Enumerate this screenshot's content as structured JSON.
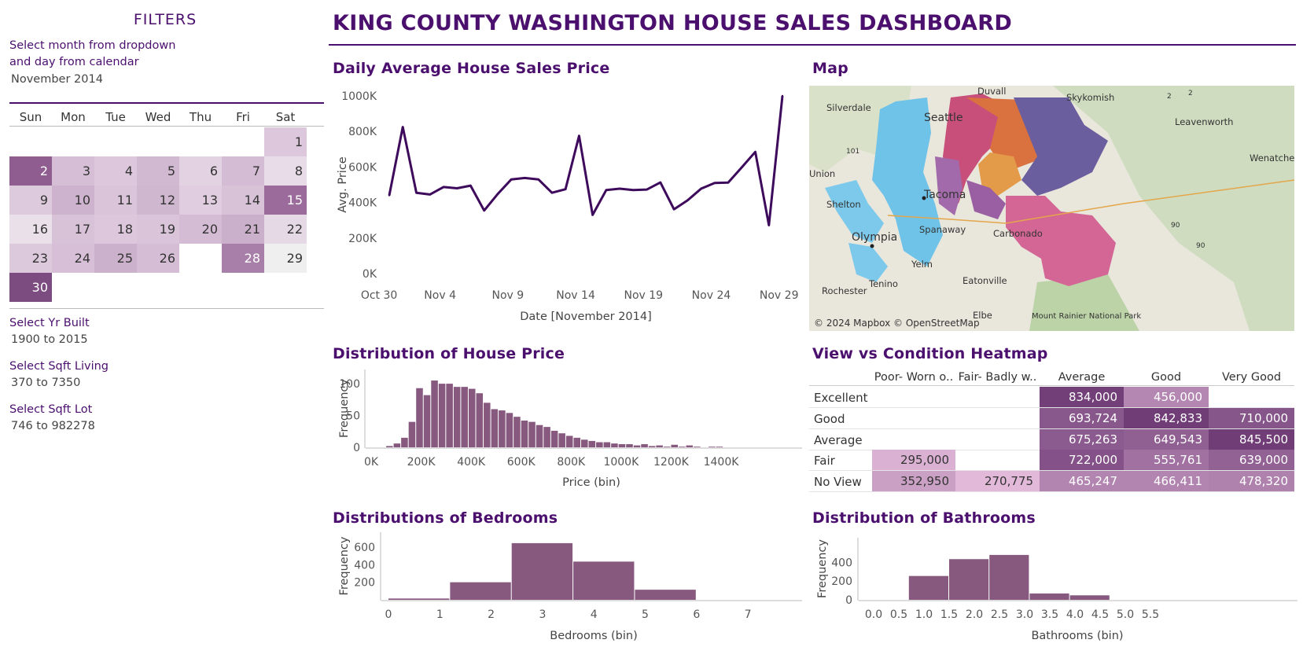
{
  "filters": {
    "title": "FILTERS",
    "month_label_line1": "Select month from dropdown",
    "month_label_line2": "and day from calendar",
    "month_value": "November 2014",
    "calendar": {
      "weekdays": [
        "Sun",
        "Mon",
        "Tue",
        "Wed",
        "Thu",
        "Fri",
        "Sat"
      ],
      "days": [
        {
          "d": "1",
          "week": 0,
          "dow": 6,
          "shade": "#dcc7dc"
        },
        {
          "d": "2",
          "week": 1,
          "dow": 0,
          "shade": "#8f5d90",
          "light": true
        },
        {
          "d": "3",
          "week": 1,
          "dow": 1,
          "shade": "#d6bfd6"
        },
        {
          "d": "4",
          "week": 1,
          "dow": 2,
          "shade": "#dcc7dc"
        },
        {
          "d": "5",
          "week": 1,
          "dow": 3,
          "shade": "#d2b9d2"
        },
        {
          "d": "6",
          "week": 1,
          "dow": 4,
          "shade": "#e2d2e2"
        },
        {
          "d": "7",
          "week": 1,
          "dow": 5,
          "shade": "#d4bcd4"
        },
        {
          "d": "8",
          "week": 1,
          "dow": 6,
          "shade": "#e8dce8"
        },
        {
          "d": "9",
          "week": 2,
          "dow": 0,
          "shade": "#ddcadd"
        },
        {
          "d": "10",
          "week": 2,
          "dow": 1,
          "shade": "#cdb3cd"
        },
        {
          "d": "11",
          "week": 2,
          "dow": 2,
          "shade": "#d9c4d9"
        },
        {
          "d": "12",
          "week": 2,
          "dow": 3,
          "shade": "#d0b7d0"
        },
        {
          "d": "13",
          "week": 2,
          "dow": 4,
          "shade": "#e0cee0"
        },
        {
          "d": "14",
          "week": 2,
          "dow": 5,
          "shade": "#d8c2d8"
        },
        {
          "d": "15",
          "week": 2,
          "dow": 6,
          "shade": "#9a6b9b",
          "light": true
        },
        {
          "d": "16",
          "week": 3,
          "dow": 0,
          "shade": "#e9e0e9"
        },
        {
          "d": "17",
          "week": 3,
          "dow": 1,
          "shade": "#d8c2d8"
        },
        {
          "d": "18",
          "week": 3,
          "dow": 2,
          "shade": "#dcc7dc"
        },
        {
          "d": "19",
          "week": 3,
          "dow": 3,
          "shade": "#d9c4d9"
        },
        {
          "d": "20",
          "week": 3,
          "dow": 4,
          "shade": "#d4bcd4"
        },
        {
          "d": "21",
          "week": 3,
          "dow": 5,
          "shade": "#cbb0cb"
        },
        {
          "d": "22",
          "week": 3,
          "dow": 6,
          "shade": "#e6d9e6"
        },
        {
          "d": "23",
          "week": 4,
          "dow": 0,
          "shade": "#dccadc"
        },
        {
          "d": "24",
          "week": 4,
          "dow": 1,
          "shade": "#d7c0d7"
        },
        {
          "d": "25",
          "week": 4,
          "dow": 2,
          "shade": "#ccb1cc"
        },
        {
          "d": "26",
          "week": 4,
          "dow": 3,
          "shade": "#d5bed5"
        },
        {
          "d": "28",
          "week": 4,
          "dow": 5,
          "shade": "#a87fa9",
          "light": true
        },
        {
          "d": "29",
          "week": 4,
          "dow": 6,
          "shade": "#efefef"
        },
        {
          "d": "30",
          "week": 5,
          "dow": 0,
          "shade": "#7c4b7f",
          "light": true
        }
      ]
    },
    "yr_built_label": "Select Yr Built",
    "yr_built_value": "1900 to 2015",
    "sqft_living_label": "Select Sqft Living",
    "sqft_living_value": "370 to 7350",
    "sqft_lot_label": "Select Sqft Lot",
    "sqft_lot_value": "746 to 982278"
  },
  "header": {
    "title": "KING COUNTY WASHINGTON HOUSE SALES DASHBOARD"
  },
  "colors": {
    "accent": "#4b0f6e",
    "bar": "#87597e",
    "line": "#3d0a5c"
  },
  "sections": {
    "daily_title": "Daily Average House Sales Price",
    "map_title": "Map",
    "price_dist_title": "Distribution of House Price",
    "heatmap_title": "View vs Condition Heatmap",
    "bedrooms_title": "Distributions of Bedrooms",
    "bathrooms_title": "Distribution of Bathrooms"
  },
  "map": {
    "attribution": "© 2024 Mapbox © OpenStreetMap",
    "places": [
      "Duvall",
      "Skykomish",
      "Silverdale",
      "Leavenworth",
      "Wenatchee",
      "Union",
      "Tacoma",
      "Shelton",
      "Olympia",
      "Spanaway",
      "Carbonado",
      "Yelm",
      "Eatonville",
      "Rochester",
      "Tenino",
      "Elbe",
      "Mount Rainier National Park",
      "Seattle"
    ],
    "route_labels": [
      "101",
      "2",
      "2",
      "90",
      "90"
    ]
  },
  "chart_data": [
    {
      "id": "daily",
      "type": "line",
      "title": "Daily Average House Sales Price",
      "xlabel": "Date [November 2014]",
      "ylabel": "Avg. Price",
      "x_ticks": [
        "Oct 30",
        "Nov 4",
        "Nov 9",
        "Nov 14",
        "Nov 19",
        "Nov 24",
        "Nov 29"
      ],
      "y_ticks": [
        "0K",
        "200K",
        "400K",
        "600K",
        "800K",
        "1000K"
      ],
      "ylim": [
        0,
        1000000
      ],
      "x": [
        1,
        2,
        3,
        4,
        5,
        6,
        7,
        8,
        9,
        10,
        11,
        12,
        13,
        14,
        15,
        16,
        17,
        18,
        19,
        20,
        21,
        22,
        23,
        24,
        25,
        26,
        27,
        28,
        29,
        30
      ],
      "values": [
        440000,
        825000,
        455000,
        445000,
        487000,
        480000,
        495000,
        355000,
        448000,
        530000,
        538000,
        530000,
        455000,
        475000,
        775000,
        330000,
        470000,
        478000,
        470000,
        473000,
        513000,
        362000,
        412000,
        478000,
        510000,
        512000,
        598000,
        685000,
        272000,
        1000000
      ]
    },
    {
      "id": "price",
      "type": "bar",
      "title": "Distribution of House Price",
      "xlabel": "Price (bin)",
      "ylabel": "Frequency",
      "x_ticks": [
        "0K",
        "200K",
        "400K",
        "600K",
        "800K",
        "1000K",
        "1200K",
        "1400K"
      ],
      "y_ticks": [
        "0",
        "50",
        "100"
      ],
      "ylim": [
        0,
        110
      ],
      "bin_width_k": 30,
      "bin_start_k": 60,
      "values": [
        2,
        6,
        15,
        40,
        93,
        82,
        105,
        100,
        100,
        95,
        95,
        92,
        85,
        70,
        60,
        58,
        54,
        48,
        42,
        40,
        35,
        32,
        26,
        22,
        18,
        15,
        12,
        10,
        8,
        8,
        6,
        5,
        5,
        3,
        5,
        2,
        3,
        1,
        4,
        1,
        3,
        1,
        0,
        1,
        1
      ]
    },
    {
      "id": "bedrooms",
      "type": "bar",
      "title": "Distributions of Bedrooms",
      "xlabel": "Bedrooms (bin)",
      "ylabel": "Frequency",
      "x_ticks": [
        "0",
        "1",
        "2",
        "3",
        "4",
        "5",
        "6",
        "7"
      ],
      "y_ticks": [
        "200",
        "400",
        "600"
      ],
      "ylim": [
        0,
        680
      ],
      "bins": [
        [
          0,
          1.2
        ],
        [
          1.2,
          2.4
        ],
        [
          2.4,
          3.6
        ],
        [
          3.6,
          4.8
        ],
        [
          4.8,
          6.0
        ]
      ],
      "values": [
        15,
        200,
        645,
        435,
        115
      ]
    },
    {
      "id": "bathrooms",
      "type": "bar",
      "title": "Distribution of Bathrooms",
      "xlabel": "Bathrooms (bin)",
      "ylabel": "Frequency",
      "x_ticks": [
        "0.0",
        "0.5",
        "1.0",
        "1.5",
        "2.0",
        "2.5",
        "3.0",
        "3.5",
        "4.0",
        "4.5",
        "5.0",
        "5.5"
      ],
      "y_ticks": [
        "0",
        "200",
        "400"
      ],
      "ylim": [
        0,
        580
      ],
      "bins": [
        [
          0.7,
          1.5
        ],
        [
          1.5,
          2.3
        ],
        [
          2.3,
          3.1
        ],
        [
          3.1,
          3.9
        ],
        [
          3.9,
          4.7
        ]
      ],
      "values": [
        255,
        435,
        480,
        68,
        48
      ]
    },
    {
      "id": "heatmap",
      "type": "heatmap",
      "title": "View vs Condition Heatmap",
      "columns": [
        "Poor- Worn o..",
        "Fair- Badly w..",
        "Average",
        "Good",
        "Very Good"
      ],
      "rows": [
        "Excellent",
        "Good",
        "Average",
        "Fair",
        "No View"
      ],
      "values": [
        [
          null,
          null,
          834000,
          456000,
          null
        ],
        [
          null,
          null,
          693724,
          842833,
          710000
        ],
        [
          null,
          null,
          675263,
          649543,
          845500
        ],
        [
          295000,
          null,
          722000,
          555761,
          639000
        ],
        [
          352950,
          270775,
          465247,
          466411,
          478320
        ]
      ],
      "labels": [
        [
          "",
          "",
          "834,000",
          "456,000",
          ""
        ],
        [
          "",
          "",
          "693,724",
          "842,833",
          "710,000"
        ],
        [
          "",
          "",
          "675,263",
          "649,543",
          "845,500"
        ],
        [
          "295,000",
          "",
          "722,000",
          "555,761",
          "639,000"
        ],
        [
          "352,950",
          "270,775",
          "465,247",
          "466,411",
          "478,320"
        ]
      ]
    }
  ]
}
